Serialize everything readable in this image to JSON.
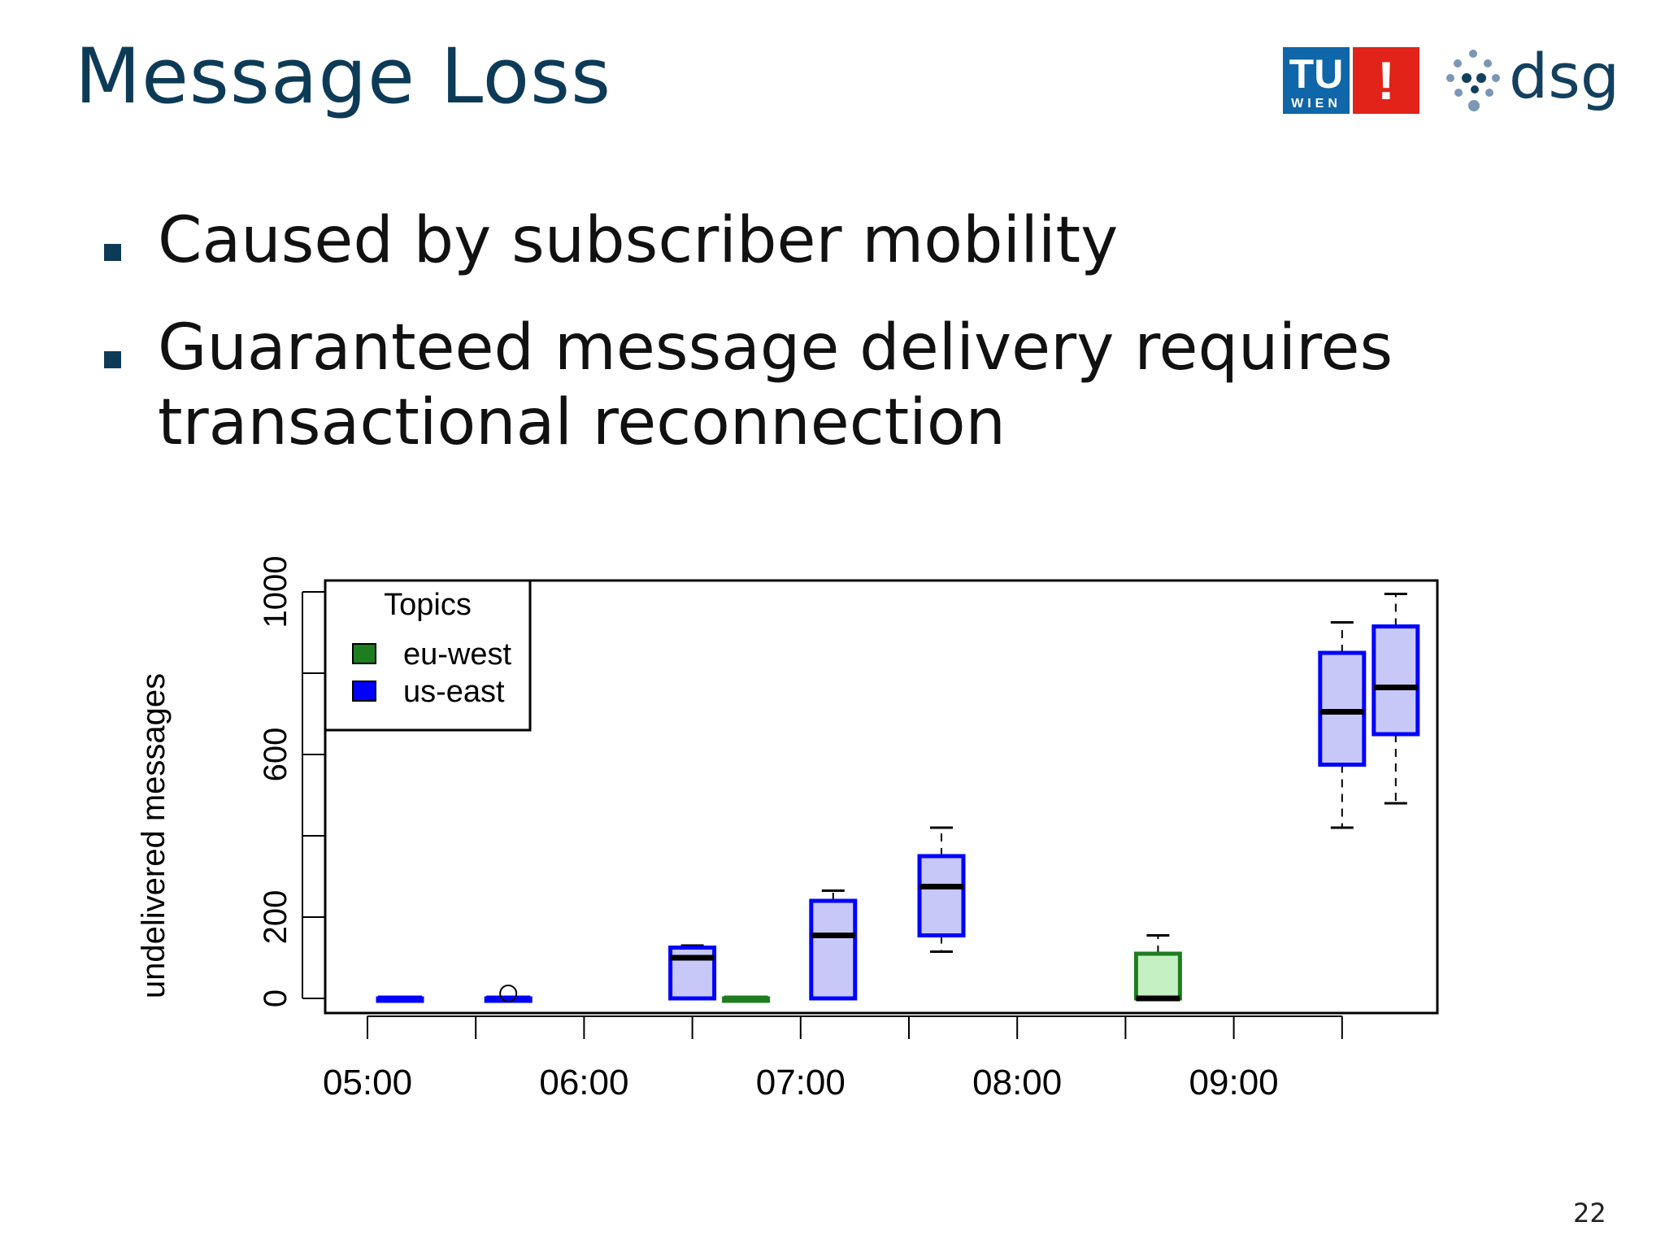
{
  "slide": {
    "title": "Message Loss",
    "bullets": [
      "Caused by subscriber mobility",
      "Guaranteed message delivery requires transactional reconnection"
    ],
    "page_number": "22"
  },
  "logos": {
    "tu_letters": "TU",
    "tu_sub": "WIEN",
    "tu_exclaim": "!",
    "dsg_text": "dsg",
    "tu_blue": "#0f66a8",
    "tu_red": "#e2231a",
    "dsg_color": "#14405f"
  },
  "chart_data": {
    "type": "boxplot",
    "xlabel": "",
    "ylabel": "undelivered messages",
    "ylim": [
      0,
      1000
    ],
    "yticks": [
      0,
      200,
      400,
      600,
      800,
      1000
    ],
    "ytick_labels": [
      "0",
      "200",
      "",
      "600",
      "",
      "1000"
    ],
    "xticks": [
      "05:00",
      "05:30",
      "06:00",
      "06:30",
      "07:00",
      "07:30",
      "08:00",
      "08:30",
      "09:00",
      "09:30"
    ],
    "xtick_labels": [
      "05:00",
      "",
      "06:00",
      "",
      "07:00",
      "",
      "08:00",
      "",
      "09:00",
      ""
    ],
    "grid": false,
    "legend": {
      "title": "Topics",
      "placement": "top-left",
      "entries": [
        {
          "name": "eu-west",
          "color": "#1e7d1e"
        },
        {
          "name": "us-east",
          "color": "#0000ff"
        }
      ]
    },
    "colors": {
      "eu-west": {
        "stroke": "#1e7d1e",
        "fill": "#c4f0c4"
      },
      "us-east": {
        "stroke": "#0000ff",
        "fill": "#c8c8f8"
      }
    },
    "boxes": [
      {
        "x": "05:00",
        "series": "us-east",
        "min": 0,
        "q1": 0,
        "median": 0,
        "q3": 0,
        "max": 0
      },
      {
        "x": "05:30",
        "series": "us-east",
        "min": 0,
        "q1": 0,
        "median": 0,
        "q3": 0,
        "max": 0,
        "outliers": [
          12
        ]
      },
      {
        "x": "06:30",
        "series": "us-east",
        "min": 0,
        "q1": 0,
        "median": 100,
        "q3": 125,
        "max": 130
      },
      {
        "x": "06:30",
        "series": "eu-west",
        "min": 0,
        "q1": 0,
        "median": 0,
        "q3": 0,
        "max": 0
      },
      {
        "x": "07:00",
        "series": "us-east",
        "min": 0,
        "q1": 0,
        "median": 155,
        "q3": 240,
        "max": 265
      },
      {
        "x": "07:30",
        "series": "us-east",
        "min": 115,
        "q1": 155,
        "median": 275,
        "q3": 350,
        "max": 420
      },
      {
        "x": "08:30",
        "series": "eu-west",
        "min": 0,
        "q1": 0,
        "median": 0,
        "q3": 110,
        "max": 155
      },
      {
        "x": "09:30",
        "series": "us-east",
        "min": 420,
        "q1": 575,
        "median": 705,
        "q3": 850,
        "max": 925
      },
      {
        "x": "09:30",
        "series": "us-east",
        "min": 480,
        "q1": 650,
        "median": 765,
        "q3": 915,
        "max": 995
      }
    ]
  }
}
